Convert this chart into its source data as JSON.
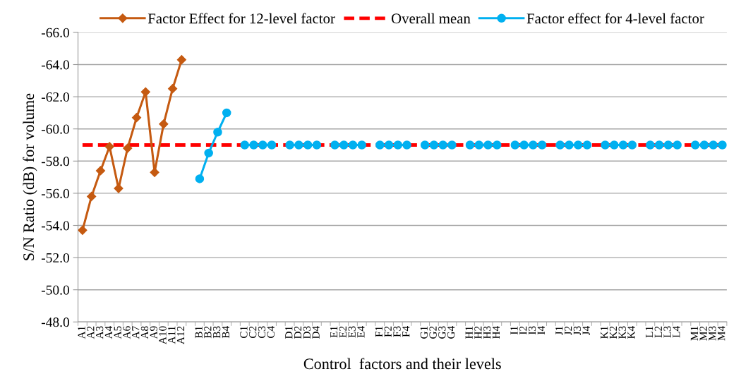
{
  "chart_data": {
    "type": "line",
    "xlabel": "Control  factors and their levels",
    "ylabel": "S/N Ratio (dB) for volume",
    "categories": [
      "A1",
      "A2",
      "A3",
      "A4",
      "A5",
      "A6",
      "A7",
      "A8",
      "A9",
      "A10",
      "A11",
      "A12",
      null,
      "B1",
      "B2",
      "B3",
      "B4",
      null,
      "C1",
      "C2",
      "C3",
      "C4",
      null,
      "D1",
      "D2",
      "D3",
      "D4",
      null,
      "E1",
      "E2",
      "E3",
      "E4",
      null,
      "F1",
      "F2",
      "F3",
      "F4",
      null,
      "G1",
      "G2",
      "G3",
      "G4",
      null,
      "H1",
      "H2",
      "H3",
      "H4",
      null,
      "I1",
      "I2",
      "I3",
      "I4",
      null,
      "J1",
      "J2",
      "J3",
      "J4",
      null,
      "K1",
      "K2",
      "K3",
      "K4",
      null,
      "L1",
      "L2",
      "L3",
      "L4",
      null,
      "M1",
      "M2",
      "M3",
      "M4"
    ],
    "series": [
      {
        "name": "Factor Effect for 12-level factor",
        "color": "#c55a11",
        "marker": "diamond",
        "line_style": "solid",
        "values": [
          -53.7,
          -55.8,
          -57.4,
          -58.9,
          -56.3,
          -58.8,
          -60.7,
          -62.3,
          -57.3,
          -60.3,
          -62.5,
          -64.3,
          null,
          null,
          null,
          null,
          null,
          null,
          null,
          null,
          null,
          null,
          null,
          null,
          null,
          null,
          null,
          null,
          null,
          null,
          null,
          null,
          null,
          null,
          null,
          null,
          null,
          null,
          null,
          null,
          null,
          null,
          null,
          null,
          null,
          null,
          null,
          null,
          null,
          null,
          null,
          null,
          null,
          null,
          null,
          null,
          null,
          null,
          null,
          null,
          null,
          null,
          null,
          null,
          null,
          null,
          null,
          null,
          null,
          null,
          null,
          null
        ]
      },
      {
        "name": "Overall mean",
        "color": "#ff0000",
        "marker": "none",
        "line_style": "dashed",
        "values": [
          -59.0,
          -59.0,
          -59.0,
          -59.0,
          -59.0,
          -59.0,
          -59.0,
          -59.0,
          -59.0,
          -59.0,
          -59.0,
          -59.0,
          -59.0,
          -59.0,
          -59.0,
          -59.0,
          -59.0,
          -59.0,
          -59.0,
          -59.0,
          -59.0,
          -59.0,
          -59.0,
          -59.0,
          -59.0,
          -59.0,
          -59.0,
          -59.0,
          -59.0,
          -59.0,
          -59.0,
          -59.0,
          -59.0,
          -59.0,
          -59.0,
          -59.0,
          -59.0,
          -59.0,
          -59.0,
          -59.0,
          -59.0,
          -59.0,
          -59.0,
          -59.0,
          -59.0,
          -59.0,
          -59.0,
          -59.0,
          -59.0,
          -59.0,
          -59.0,
          -59.0,
          -59.0,
          -59.0,
          -59.0,
          -59.0,
          -59.0,
          -59.0,
          -59.0,
          -59.0,
          -59.0,
          -59.0,
          -59.0,
          -59.0,
          -59.0,
          -59.0,
          -59.0,
          -59.0,
          -59.0,
          -59.0,
          -59.0,
          -59.0
        ]
      },
      {
        "name": "Factor effect for 4-level factor",
        "color": "#00b0f0",
        "marker": "circle",
        "line_style": "solid",
        "values": [
          null,
          null,
          null,
          null,
          null,
          null,
          null,
          null,
          null,
          null,
          null,
          null,
          null,
          -56.9,
          -58.5,
          -59.8,
          -61.0,
          null,
          -59.0,
          -59.0,
          -59.0,
          -59.0,
          null,
          -59.0,
          -59.0,
          -59.0,
          -59.0,
          null,
          -59.0,
          -59.0,
          -59.0,
          -59.0,
          null,
          -59.0,
          -59.0,
          -59.0,
          -59.0,
          null,
          -59.0,
          -59.0,
          -59.0,
          -59.0,
          null,
          -59.0,
          -59.0,
          -59.0,
          -59.0,
          null,
          -59.0,
          -59.0,
          -59.0,
          -59.0,
          null,
          -59.0,
          -59.0,
          -59.0,
          -59.0,
          null,
          -59.0,
          -59.0,
          -59.0,
          -59.0,
          null,
          -59.0,
          -59.0,
          -59.0,
          -59.0,
          null,
          -59.0,
          -59.0,
          -59.0,
          -59.0
        ]
      }
    ],
    "ylim": [
      -48,
      -66
    ],
    "yticks": [
      {
        "value": -66,
        "label": "-66.0"
      },
      {
        "value": -64,
        "label": "-64.0"
      },
      {
        "value": -62,
        "label": "-62.0"
      },
      {
        "value": -60,
        "label": "-60.0"
      },
      {
        "value": -58,
        "label": "-58.0"
      },
      {
        "value": -56,
        "label": "-56.0"
      },
      {
        "value": -54,
        "label": "-54.0"
      },
      {
        "value": -52,
        "label": "-52.0"
      },
      {
        "value": -50,
        "label": "-50.0"
      },
      {
        "value": -48,
        "label": "-48.0"
      }
    ],
    "grid": "y",
    "legend": "top"
  }
}
